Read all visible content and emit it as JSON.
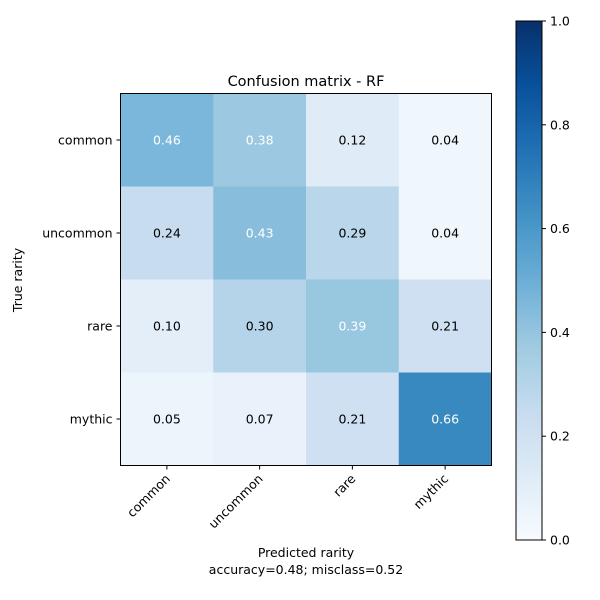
{
  "chart_data": {
    "type": "heatmap",
    "title": "Confusion matrix - RF",
    "xlabel": "Predicted rarity",
    "xlabel_note": "accuracy=0.48; misclass=0.52",
    "ylabel": "True rarity",
    "x_categories": [
      "common",
      "uncommon",
      "rare",
      "mythic"
    ],
    "y_categories": [
      "common",
      "uncommon",
      "rare",
      "mythic"
    ],
    "values": [
      [
        0.46,
        0.38,
        0.12,
        0.04
      ],
      [
        0.24,
        0.43,
        0.29,
        0.04
      ],
      [
        0.1,
        0.3,
        0.39,
        0.21
      ],
      [
        0.05,
        0.07,
        0.21,
        0.66
      ]
    ],
    "value_labels": [
      [
        "0.46",
        "0.38",
        "0.12",
        "0.04"
      ],
      [
        "0.24",
        "0.43",
        "0.29",
        "0.04"
      ],
      [
        "0.10",
        "0.30",
        "0.39",
        "0.21"
      ],
      [
        "0.05",
        "0.07",
        "0.21",
        "0.66"
      ]
    ],
    "colormap": "Blues",
    "color_range": [
      0,
      1
    ],
    "colorbar_ticks": [
      "0.0",
      "0.2",
      "0.4",
      "0.6",
      "0.8",
      "1.0"
    ],
    "colorbar_tick_values": [
      0,
      0.2,
      0.4,
      0.6,
      0.8,
      1.0
    ],
    "grid": false,
    "text_color_dark": "#000000",
    "text_color_light": "#ffffff"
  }
}
